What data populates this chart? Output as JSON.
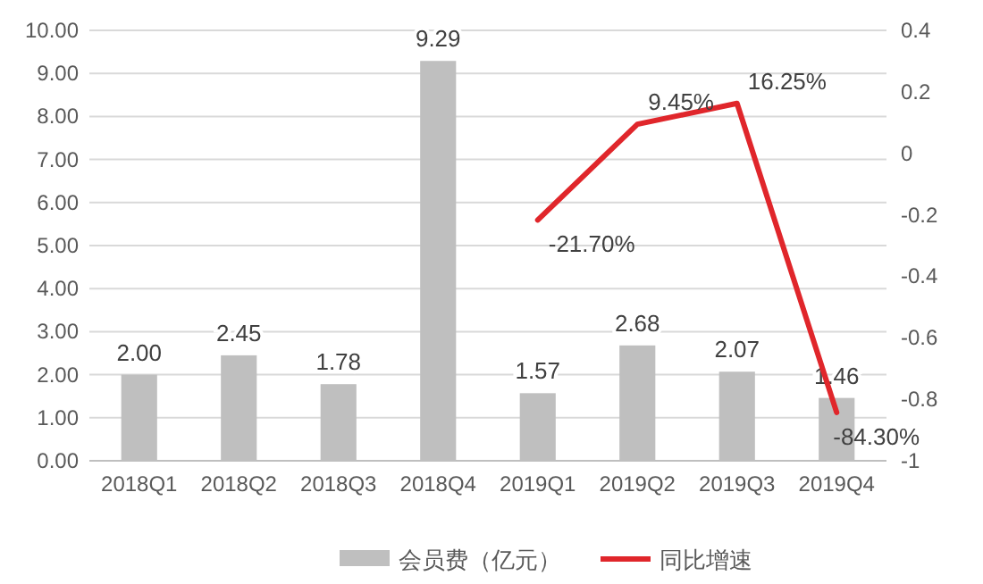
{
  "chart_data": {
    "type": "bar",
    "categories": [
      "2018Q1",
      "2018Q2",
      "2018Q3",
      "2018Q4",
      "2019Q1",
      "2019Q2",
      "2019Q3",
      "2019Q4"
    ],
    "series": [
      {
        "name": "会员费（亿元）",
        "color": "#bfbfbf",
        "values": [
          2.0,
          2.45,
          1.78,
          9.29,
          1.57,
          2.68,
          2.07,
          1.46
        ],
        "value_labels": [
          "2.00",
          "2.45",
          "1.78",
          "9.29",
          "1.57",
          "2.68",
          "2.07",
          "1.46"
        ]
      },
      {
        "name": "同比增速",
        "type": "line",
        "axis": "y2",
        "color": "#e0262b",
        "values": [
          null,
          null,
          null,
          null,
          -0.217,
          0.0945,
          0.1625,
          -0.843
        ],
        "value_labels": [
          null,
          null,
          null,
          null,
          "-21.70%",
          "9.45%",
          "16.25%",
          "-84.30%"
        ]
      }
    ],
    "ylim": [
      0,
      10
    ],
    "yticks": [
      {
        "value": 0,
        "label": "0.00"
      },
      {
        "value": 1,
        "label": "1.00"
      },
      {
        "value": 2,
        "label": "2.00"
      },
      {
        "value": 3,
        "label": "3.00"
      },
      {
        "value": 4,
        "label": "4.00"
      },
      {
        "value": 5,
        "label": "5.00"
      },
      {
        "value": 6,
        "label": "6.00"
      },
      {
        "value": 7,
        "label": "7.00"
      },
      {
        "value": 8,
        "label": "8.00"
      },
      {
        "value": 9,
        "label": "9.00"
      },
      {
        "value": 10,
        "label": "10.00"
      }
    ],
    "y2lim": [
      -1,
      0.4
    ],
    "y2ticks": [
      0.4,
      0.2,
      0,
      -0.2,
      -0.4,
      -0.6,
      -0.8,
      -1
    ],
    "grid": "y",
    "legend": "bottom",
    "marker": "none",
    "line_style": "solid"
  }
}
